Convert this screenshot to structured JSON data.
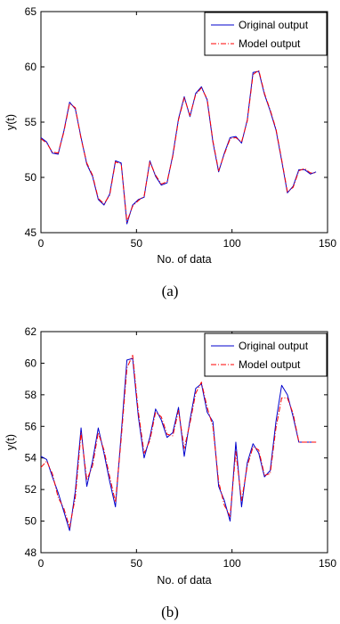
{
  "colors": {
    "original": "#0000cc",
    "model": "#ff0000"
  },
  "chart_data": [
    {
      "type": "line",
      "caption": "(a)",
      "xlabel": "No. of data",
      "ylabel": "y(t)",
      "xlim": [
        0,
        150
      ],
      "ylim": [
        45,
        65
      ],
      "xticks": [
        0,
        50,
        100,
        150
      ],
      "yticks": [
        45,
        50,
        55,
        60,
        65
      ],
      "legend_position": "top-right",
      "series": [
        {
          "name": "Original output",
          "style": "solid",
          "x": [
            0,
            3,
            6,
            9,
            12,
            15,
            18,
            21,
            24,
            27,
            30,
            33,
            36,
            39,
            42,
            45,
            48,
            51,
            54,
            57,
            60,
            63,
            66,
            69,
            72,
            75,
            78,
            81,
            84,
            87,
            90,
            93,
            96,
            99,
            102,
            105,
            108,
            111,
            114,
            117,
            120,
            123,
            126,
            129,
            132,
            135,
            138,
            141,
            144
          ],
          "y": [
            53.6,
            53.2,
            52.2,
            52.1,
            54.2,
            56.8,
            56.2,
            53.6,
            51.2,
            50.1,
            48.0,
            47.5,
            48.5,
            51.5,
            51.3,
            45.8,
            47.5,
            48.0,
            48.2,
            51.5,
            50.1,
            49.3,
            49.5,
            52.0,
            55.3,
            57.3,
            55.5,
            57.6,
            58.2,
            57.0,
            53.2,
            50.5,
            52.2,
            53.6,
            53.7,
            53.1,
            55.2,
            59.5,
            59.6,
            57.5,
            56.0,
            54.3,
            51.5,
            48.6,
            49.2,
            50.7,
            50.7,
            50.3,
            50.5
          ]
        },
        {
          "name": "Model output",
          "style": "dashdot",
          "x": [
            0,
            3,
            6,
            9,
            12,
            15,
            18,
            21,
            24,
            27,
            30,
            33,
            36,
            39,
            42,
            45,
            48,
            51,
            54,
            57,
            60,
            63,
            66,
            69,
            72,
            75,
            78,
            81,
            84,
            87,
            90,
            93,
            96,
            99,
            102,
            105,
            108,
            111,
            114,
            117,
            120,
            123,
            126,
            129,
            132,
            135,
            138,
            141,
            144
          ],
          "y": [
            53.5,
            53.1,
            52.3,
            52.2,
            54.1,
            56.7,
            56.3,
            53.5,
            51.3,
            50.2,
            48.1,
            47.6,
            48.4,
            51.4,
            51.2,
            46.0,
            47.4,
            47.9,
            48.3,
            51.4,
            50.2,
            49.4,
            49.6,
            51.9,
            55.2,
            57.2,
            55.6,
            57.5,
            58.1,
            57.1,
            53.3,
            50.6,
            52.1,
            53.5,
            53.6,
            53.2,
            55.1,
            59.3,
            59.7,
            57.6,
            56.1,
            54.4,
            51.6,
            48.7,
            49.1,
            50.6,
            50.8,
            50.4,
            50.4
          ]
        }
      ]
    },
    {
      "type": "line",
      "caption": "(b)",
      "xlabel": "No. of data",
      "ylabel": "y(t)",
      "xlim": [
        0,
        150
      ],
      "ylim": [
        48,
        62
      ],
      "xticks": [
        0,
        50,
        100,
        150
      ],
      "yticks": [
        48,
        50,
        52,
        54,
        56,
        58,
        60,
        62
      ],
      "legend_position": "top-right",
      "series": [
        {
          "name": "Original output",
          "style": "solid",
          "x": [
            0,
            3,
            6,
            9,
            12,
            15,
            18,
            21,
            24,
            27,
            30,
            33,
            36,
            39,
            42,
            45,
            48,
            51,
            54,
            57,
            60,
            63,
            66,
            69,
            72,
            75,
            78,
            81,
            84,
            87,
            90,
            93,
            96,
            99,
            102,
            105,
            108,
            111,
            114,
            117,
            120,
            123,
            126,
            129,
            132,
            135,
            138,
            141,
            144
          ],
          "y": [
            54.1,
            53.9,
            52.8,
            51.8,
            50.6,
            49.4,
            51.9,
            55.9,
            52.2,
            53.8,
            55.9,
            54.3,
            52.5,
            50.9,
            55.5,
            60.2,
            60.3,
            56.6,
            54.0,
            55.3,
            57.1,
            56.4,
            55.3,
            55.6,
            57.2,
            54.1,
            56.4,
            58.4,
            58.7,
            56.9,
            56.3,
            52.2,
            51.3,
            50.0,
            55.0,
            50.9,
            53.7,
            54.9,
            54.3,
            52.8,
            53.2,
            56.3,
            58.6,
            58.0,
            56.6,
            55.0,
            55.0,
            55.0,
            55.0
          ]
        },
        {
          "name": "Model output",
          "style": "dashdot",
          "x": [
            0,
            3,
            6,
            9,
            12,
            15,
            18,
            21,
            24,
            27,
            30,
            33,
            36,
            39,
            42,
            45,
            48,
            51,
            54,
            57,
            60,
            63,
            66,
            69,
            72,
            75,
            78,
            81,
            84,
            87,
            90,
            93,
            96,
            99,
            102,
            105,
            108,
            111,
            114,
            117,
            120,
            123,
            126,
            129,
            132,
            135,
            138,
            141,
            144
          ],
          "y": [
            53.4,
            53.8,
            53.0,
            51.5,
            50.8,
            49.6,
            51.5,
            55.6,
            52.6,
            53.5,
            55.6,
            54.5,
            52.8,
            51.2,
            55.2,
            59.7,
            60.5,
            56.9,
            54.3,
            55.1,
            56.9,
            56.6,
            55.5,
            55.4,
            57.0,
            54.6,
            56.2,
            58.1,
            58.8,
            57.2,
            56.0,
            52.5,
            51.0,
            50.3,
            54.4,
            51.3,
            53.5,
            54.7,
            54.5,
            52.9,
            53.0,
            55.9,
            57.8,
            57.8,
            56.8,
            55.0,
            55.0,
            55.0,
            55.0
          ]
        }
      ]
    }
  ]
}
